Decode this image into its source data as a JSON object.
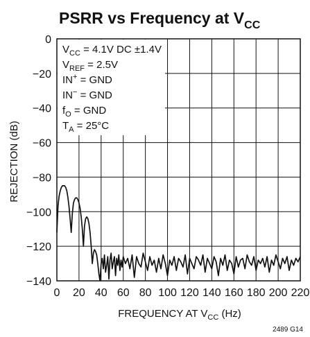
{
  "chart_data": {
    "type": "line",
    "title": {
      "main": "PSRR vs Frequency at V",
      "sub": "CC"
    },
    "xlabel": {
      "main": "FREQUENCY AT V",
      "sub": "CC",
      "tail": " (Hz)"
    },
    "ylabel": "REJECTION (dB)",
    "xlim": [
      0,
      220
    ],
    "ylim": [
      -140,
      0
    ],
    "x_ticks": [
      "0",
      "20",
      "40",
      "60",
      "80",
      "100",
      "120",
      "140",
      "160",
      "180",
      "200",
      "220"
    ],
    "y_ticks": [
      "0",
      "−20",
      "−40",
      "−60",
      "−80",
      "−100",
      "−120",
      "−140"
    ],
    "grid": true,
    "annotations": [
      {
        "pre": "V",
        "sub": "CC",
        "post": " = 4.1V DC ±1.4V"
      },
      {
        "pre": "V",
        "sub": "REF",
        "post": " = 2.5V"
      },
      {
        "pre": "IN",
        "sup": "+",
        "post": " = GND"
      },
      {
        "pre": "IN",
        "sup": "−",
        "post": " = GND"
      },
      {
        "pre": "f",
        "sub": "O",
        "post": " = GND"
      },
      {
        "pre": "T",
        "sub": "A",
        "post": " = 25°C"
      }
    ],
    "series": [
      {
        "x": [
          0,
          1,
          2,
          3,
          4,
          5,
          6,
          7,
          8,
          9,
          10,
          11,
          12,
          13,
          14,
          15,
          16,
          17,
          18,
          19,
          20,
          21,
          22,
          23,
          24,
          25,
          26,
          27,
          28,
          29,
          30,
          31,
          32,
          33,
          34,
          35,
          36,
          37,
          38,
          39,
          40,
          41,
          42,
          43,
          44,
          45,
          46,
          47,
          48,
          49,
          50,
          51,
          52,
          53,
          54,
          55,
          56,
          57,
          58,
          59,
          60,
          62,
          64,
          66,
          68,
          70,
          72,
          74,
          76,
          78,
          80,
          82,
          84,
          86,
          88,
          90,
          92,
          94,
          96,
          98,
          100,
          102,
          104,
          106,
          108,
          110,
          112,
          114,
          116,
          118,
          120,
          122,
          124,
          126,
          128,
          130,
          132,
          134,
          136,
          138,
          140,
          142,
          144,
          146,
          148,
          150,
          152,
          154,
          156,
          158,
          160,
          162,
          164,
          166,
          168,
          170,
          172,
          174,
          176,
          178,
          180,
          182,
          184,
          186,
          188,
          190,
          192,
          194,
          196,
          198,
          200,
          202,
          204,
          206,
          208,
          210,
          212,
          214,
          216,
          218,
          220
        ],
        "y": [
          -112,
          -97,
          -91,
          -88,
          -86,
          -85,
          -85,
          -85,
          -86,
          -88,
          -92,
          -97,
          -104,
          -112,
          -101,
          -95,
          -93,
          -92,
          -92,
          -93,
          -95,
          -98,
          -103,
          -110,
          -120,
          -108,
          -104,
          -103,
          -104,
          -107,
          -112,
          -120,
          -130,
          -124,
          -122,
          -123,
          -125,
          -130,
          -136,
          -140,
          -130,
          -127,
          -133,
          -125,
          -135,
          -131,
          -126,
          -139,
          -128,
          -124,
          -133,
          -129,
          -126,
          -137,
          -127,
          -131,
          -125,
          -134,
          -128,
          -132,
          -126,
          -130,
          -127,
          -133,
          -125,
          -138,
          -126,
          -130,
          -132,
          -124,
          -129,
          -134,
          -126,
          -131,
          -128,
          -135,
          -127,
          -133,
          -125,
          -130,
          -137,
          -128,
          -131,
          -126,
          -134,
          -127,
          -129,
          -132,
          -125,
          -136,
          -127,
          -130,
          -133,
          -126,
          -128,
          -131,
          -125,
          -135,
          -127,
          -130,
          -133,
          -126,
          -129,
          -137,
          -127,
          -131,
          -125,
          -134,
          -128,
          -130,
          -136,
          -126,
          -132,
          -128,
          -127,
          -133,
          -125,
          -129,
          -131,
          -126,
          -134,
          -128,
          -130,
          -127,
          -132,
          -126,
          -135,
          -128,
          -131,
          -125,
          -129,
          -133,
          -127,
          -130,
          -126,
          -134,
          -128,
          -131,
          -127,
          -129,
          -126
        ]
      }
    ],
    "figure_id": "2489 G14"
  }
}
